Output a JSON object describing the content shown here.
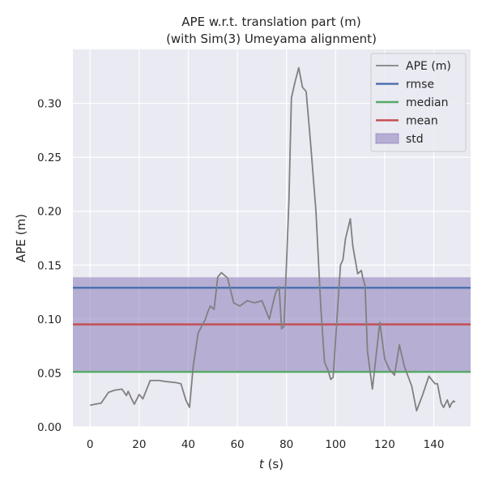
{
  "chart_data": {
    "type": "line",
    "title": "APE w.r.t. translation part (m)",
    "subtitle": "(with Sim(3) Umeyama alignment)",
    "xlabel_italic": "t",
    "xlabel_rest": " (s)",
    "ylabel": "APE (m)",
    "xlim": [
      -7,
      155
    ],
    "ylim": [
      0,
      0.35
    ],
    "xticks": [
      0,
      20,
      40,
      60,
      80,
      100,
      120,
      140
    ],
    "xtick_labels": [
      "0",
      "20",
      "40",
      "60",
      "80",
      "100",
      "120",
      "140"
    ],
    "yticks": [
      0,
      0.05,
      0.1,
      0.15,
      0.2,
      0.25,
      0.3
    ],
    "ytick_labels": [
      "0.00",
      "0.05",
      "0.10",
      "0.15",
      "0.20",
      "0.25",
      "0.30"
    ],
    "grid": true,
    "legend_position": "top-right",
    "series": [
      {
        "name": "APE (m)",
        "color": "#808080",
        "x": [
          0,
          2,
          4.5,
          7.5,
          10,
          13,
          14.8,
          15.5,
          16.5,
          18,
          20,
          21.5,
          24.5,
          28,
          31,
          35,
          37,
          39,
          40.5,
          42,
          44,
          47,
          48,
          49,
          50.5,
          52,
          53.5,
          56,
          58.5,
          61,
          64,
          67,
          70,
          73,
          75.5,
          77,
          78,
          79,
          81,
          82,
          83.5,
          85,
          86.5,
          88,
          89,
          90,
          92,
          94,
          95.5,
          97,
          98,
          99,
          102,
          103,
          104,
          106,
          107,
          109,
          110.5,
          111,
          112,
          113,
          115,
          118,
          120,
          122,
          124,
          126,
          128,
          131,
          133,
          135.5,
          138,
          140.5,
          141.5,
          143,
          144,
          145.5,
          146.5,
          147,
          148,
          148.7
        ],
        "values": [
          0.02,
          0.021,
          0.022,
          0.032,
          0.034,
          0.035,
          0.029,
          0.033,
          0.028,
          0.021,
          0.03,
          0.026,
          0.043,
          0.043,
          0.042,
          0.041,
          0.04,
          0.025,
          0.018,
          0.056,
          0.087,
          0.1,
          0.107,
          0.112,
          0.109,
          0.139,
          0.143,
          0.138,
          0.115,
          0.112,
          0.117,
          0.115,
          0.117,
          0.1,
          0.124,
          0.13,
          0.091,
          0.093,
          0.21,
          0.305,
          0.32,
          0.333,
          0.315,
          0.311,
          0.285,
          0.258,
          0.2,
          0.11,
          0.06,
          0.052,
          0.044,
          0.046,
          0.15,
          0.155,
          0.174,
          0.193,
          0.168,
          0.142,
          0.145,
          0.139,
          0.131,
          0.07,
          0.035,
          0.097,
          0.063,
          0.053,
          0.048,
          0.076,
          0.056,
          0.038,
          0.015,
          0.03,
          0.047,
          0.04,
          0.04,
          0.022,
          0.018,
          0.025,
          0.018,
          0.021,
          0.024,
          0.023
        ]
      }
    ],
    "stats": {
      "rmse": 0.129,
      "median": 0.051,
      "mean": 0.095,
      "std": 0.0437
    },
    "legend": [
      {
        "label": "APE (m)",
        "kind": "line",
        "color": "#808080"
      },
      {
        "label": "rmse",
        "kind": "line",
        "color": "#4c72b0"
      },
      {
        "label": "median",
        "kind": "line",
        "color": "#55a868"
      },
      {
        "label": "mean",
        "kind": "line",
        "color": "#c44e52"
      },
      {
        "label": "std",
        "kind": "patch",
        "color": "#8172b3"
      }
    ],
    "colors": {
      "axes_background": "#eaeaf2",
      "grid": "#ffffff",
      "rmse": "#4c72b0",
      "median": "#55a868",
      "mean": "#c44e52",
      "std_fill": "#8172b3"
    }
  }
}
